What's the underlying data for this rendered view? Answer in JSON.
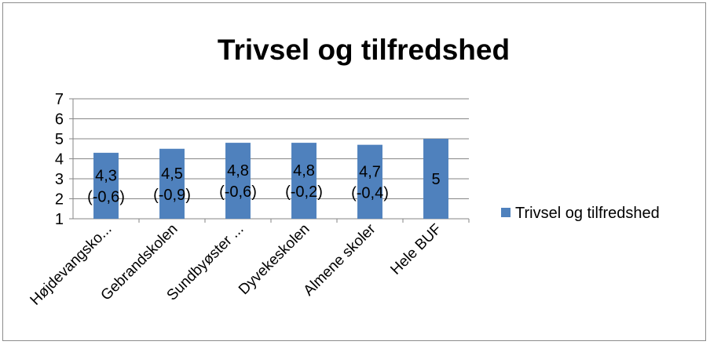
{
  "chart_data": {
    "type": "bar",
    "title": "Trivsel og tilfredshed",
    "xlabel": "",
    "ylabel": "",
    "categories": [
      "Højdevangsko...",
      "Gebrandskolen",
      "Sundbyøster ...",
      "Dyvekeskolen",
      "Almene skoler",
      "Hele BUF"
    ],
    "series": [
      {
        "name": "Trivsel og tilfredshed",
        "values": [
          4.3,
          4.5,
          4.8,
          4.8,
          4.7,
          5
        ],
        "data_labels": [
          [
            "4,3",
            "(-0,6)"
          ],
          [
            "4,5",
            "(-0,9)"
          ],
          [
            "4,8",
            "(-0,6)"
          ],
          [
            "4,8",
            "(-0,2)"
          ],
          [
            "4,7",
            "(-0,4)"
          ],
          [
            "5"
          ]
        ],
        "color": "#4f81bd"
      }
    ],
    "ylim": [
      1,
      7
    ],
    "yticks": [
      1,
      2,
      3,
      4,
      5,
      6,
      7
    ],
    "grid": true,
    "legend": "right"
  }
}
